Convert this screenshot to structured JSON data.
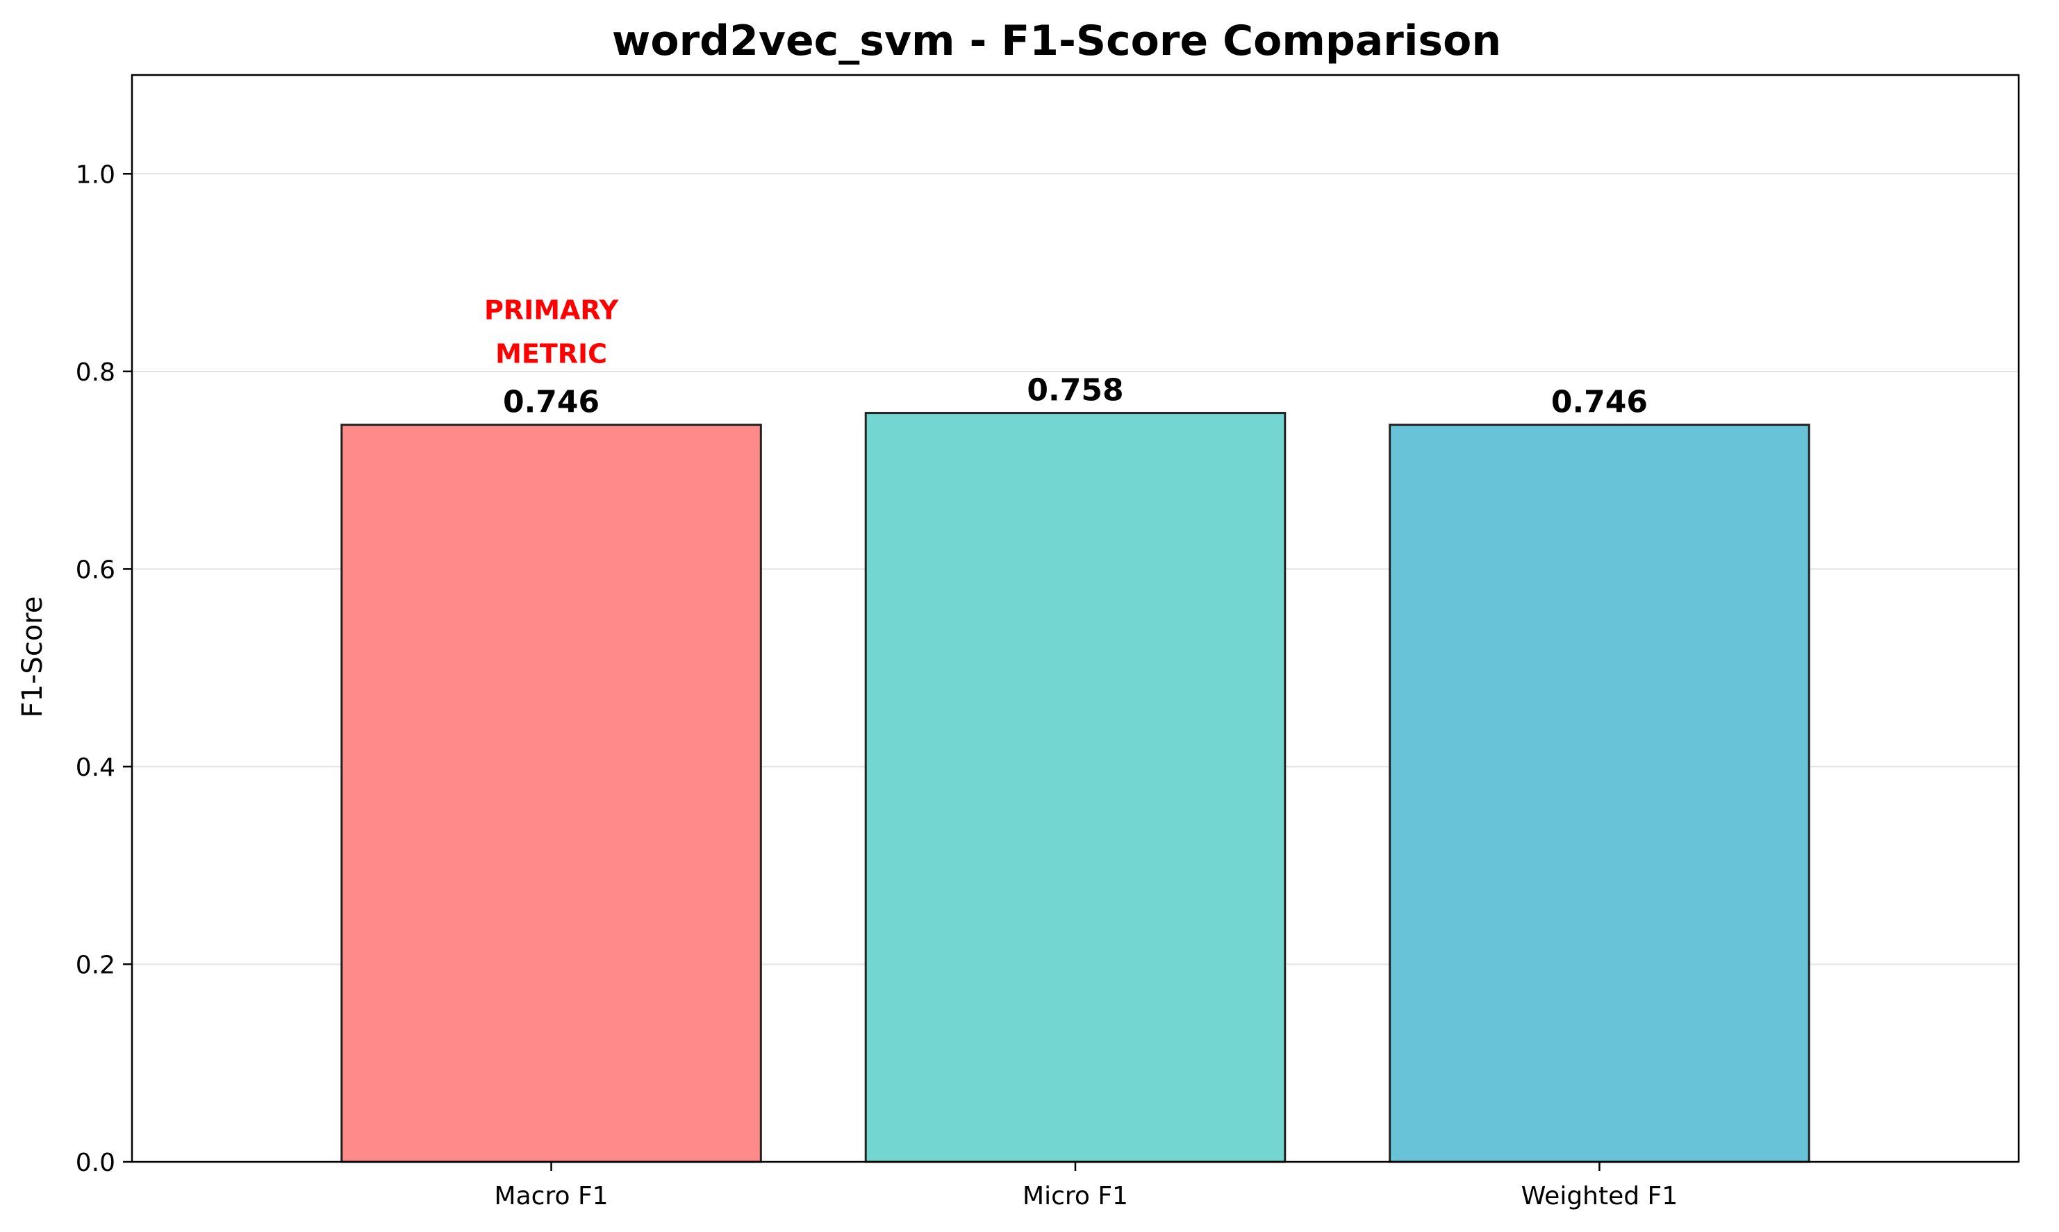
{
  "chart_data": {
    "type": "bar",
    "title": "word2vec_svm - F1-Score Comparison",
    "xlabel": "",
    "ylabel": "F1-Score",
    "categories": [
      "Macro F1",
      "Micro F1",
      "Weighted F1"
    ],
    "values": [
      0.746,
      0.758,
      0.746
    ],
    "value_labels": [
      "0.746",
      "0.758",
      "0.746"
    ],
    "bar_colors": [
      "#ff8a8a",
      "#74d6d0",
      "#69c3d8"
    ],
    "bar_edge_color": "#222222",
    "ylim": [
      0,
      1.1
    ],
    "yticks": [
      0.0,
      0.2,
      0.4,
      0.6,
      0.8,
      1.0
    ],
    "ytick_labels": [
      "0.0",
      "0.2",
      "0.4",
      "0.6",
      "0.8",
      "1.0"
    ],
    "grid": "y",
    "annotation": {
      "category": "Macro F1",
      "lines": [
        "PRIMARY",
        "METRIC"
      ],
      "color": "#ff0000"
    }
  }
}
